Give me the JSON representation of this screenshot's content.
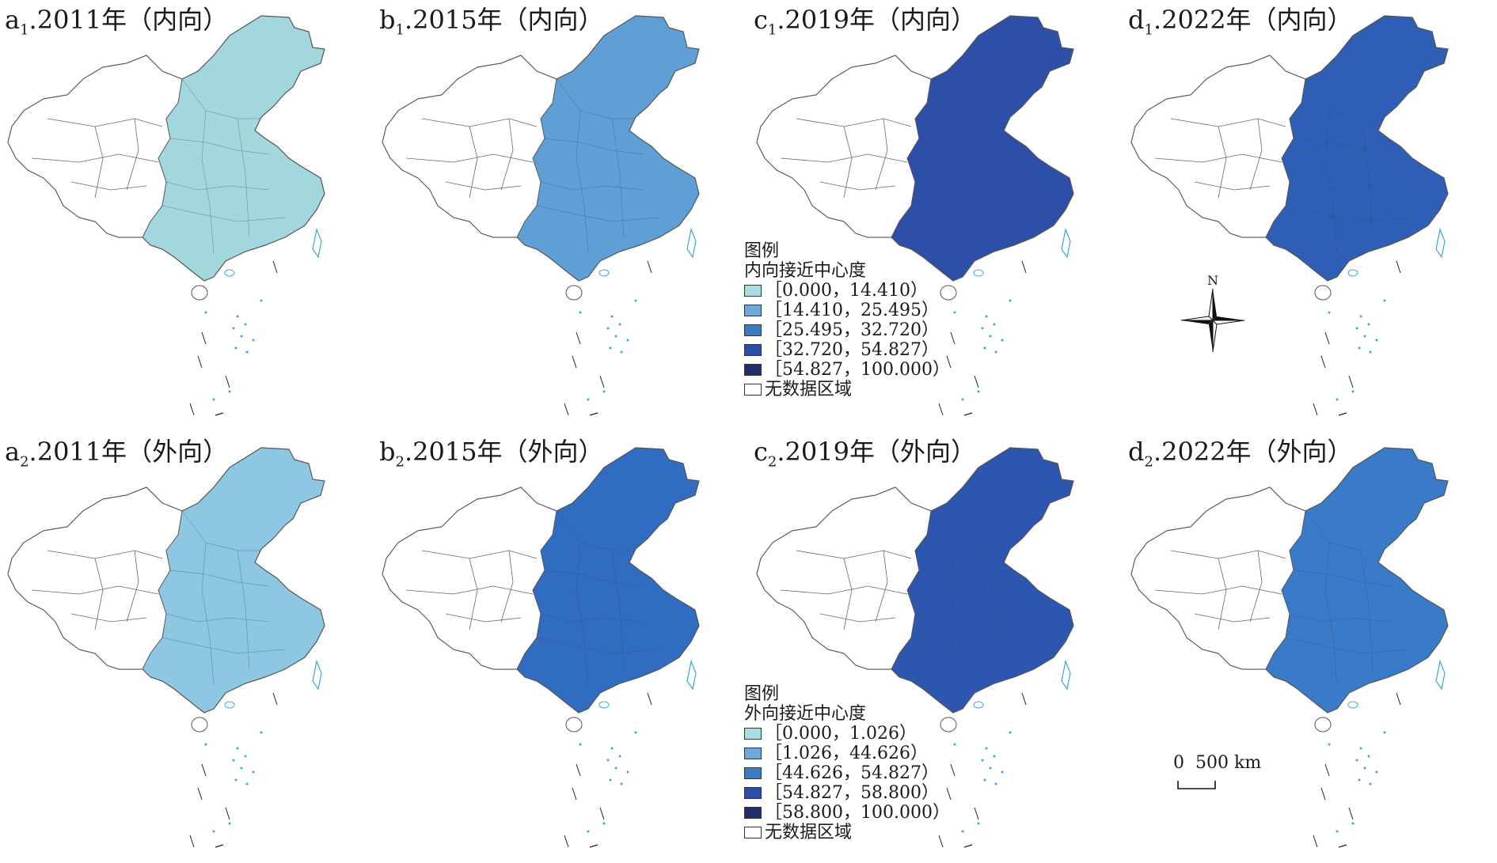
{
  "panels": [
    {
      "letter": "a",
      "sub": "1",
      "label": ".2011年（内向）",
      "fill": "#a2d7de"
    },
    {
      "letter": "b",
      "sub": "1",
      "label": ".2015年（内向）",
      "fill": "#5f9fd6"
    },
    {
      "letter": "c",
      "sub": "1",
      "label": ".2019年（内向）",
      "fill": "#2d4fa8"
    },
    {
      "letter": "d",
      "sub": "1",
      "label": ".2022年（内向）",
      "fill": "#2e5eb6"
    },
    {
      "letter": "a",
      "sub": "2",
      "label": ".2011年（外向）",
      "fill": "#8ec7e2"
    },
    {
      "letter": "b",
      "sub": "2",
      "label": ".2015年（外向）",
      "fill": "#2f6cc2"
    },
    {
      "letter": "c",
      "sub": "2",
      "label": ".2019年（外向）",
      "fill": "#2c56b0"
    },
    {
      "letter": "d",
      "sub": "2",
      "label": ".2022年（外向）",
      "fill": "#3a7bc9"
    }
  ],
  "legend_in": {
    "heading": "图例",
    "title": "内向接近中心度",
    "items": [
      {
        "label": "［0.000，14.410）",
        "color": "#a8dde3"
      },
      {
        "label": "［14.410，25.495）",
        "color": "#6fa8dc"
      },
      {
        "label": "［25.495，32.720）",
        "color": "#3a7cc8"
      },
      {
        "label": "［32.720，54.827）",
        "color": "#2c4ea8"
      },
      {
        "label": "［54.827，100.000）",
        "color": "#222d6b"
      }
    ],
    "nodata": "无数据区域"
  },
  "legend_out": {
    "heading": "图例",
    "title": "外向接近中心度",
    "items": [
      {
        "label": "［0.000，1.026）",
        "color": "#a8dde3"
      },
      {
        "label": "［1.026，44.626）",
        "color": "#6fa8dc"
      },
      {
        "label": "［44.626，54.827）",
        "color": "#3a7cc8"
      },
      {
        "label": "［54.827，58.800）",
        "color": "#2c4ea8"
      },
      {
        "label": "［58.800，100.000）",
        "color": "#222d6b"
      }
    ],
    "nodata": "无数据区域"
  },
  "compass": {
    "north": "N"
  },
  "scale": {
    "zero": "0",
    "value": "500 km"
  }
}
